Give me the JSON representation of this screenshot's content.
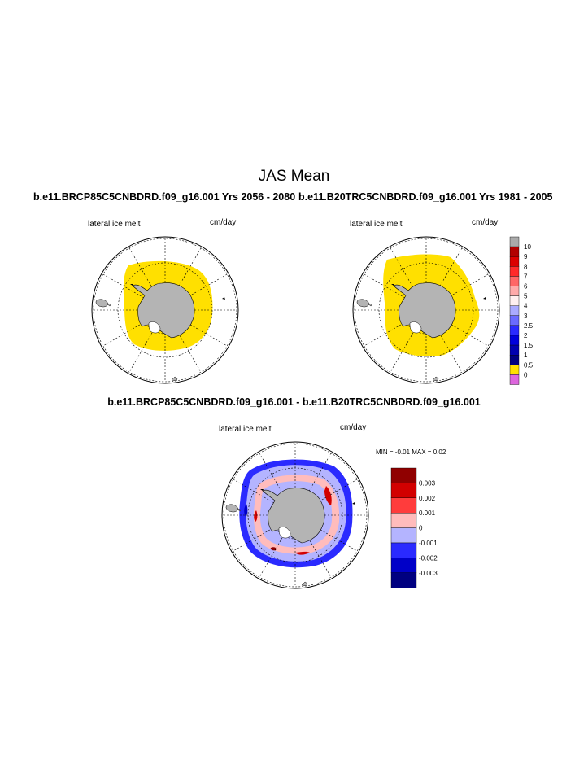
{
  "figure": {
    "title": "JAS Mean",
    "left_run_title": "b.e11.BRCP85C5CNBDRD.f09_g16.001  Yrs 2056 - 2080",
    "right_run_title": "b.e11.B20TRC5CNBDRD.f09_g16.001  Yrs 1981 - 2005",
    "diff_title": "b.e11.BRCP85C5CNBDRD.f09_g16.001 - b.e11.B20TRC5CNBDRD.f09_g16.001"
  },
  "panels": {
    "left": {
      "variable": "lateral ice melt",
      "units": "cm/day"
    },
    "right": {
      "variable": "lateral ice melt",
      "units": "cm/day"
    },
    "diff": {
      "variable": "lateral ice melt",
      "units": "cm/day",
      "min_max": "MIN =  -0.01 MAX =   0.02"
    }
  },
  "colorbars": {
    "absolute": {
      "labels": [
        "10",
        "9",
        "8",
        "7",
        "6",
        "5",
        "4",
        "3",
        "2.5",
        "2",
        "1.5",
        "1",
        "0.5",
        "0"
      ],
      "colors": [
        "#aaaaaa",
        "#b20000",
        "#dc0000",
        "#ff2a2a",
        "#ff6666",
        "#ffaaaa",
        "#fff0f0",
        "#aaaaff",
        "#6a6aff",
        "#2a2aff",
        "#0000dc",
        "#0000b0",
        "#000080",
        "#ffe000",
        "#dd66dd"
      ]
    },
    "difference": {
      "labels": [
        "0.003",
        "0.002",
        "0.001",
        "0",
        "-0.001",
        "-0.002",
        "-0.003"
      ],
      "colors": [
        "#900000",
        "#d20000",
        "#ff3c3c",
        "#ffbcbc",
        "#b4b4ff",
        "#2a2aff",
        "#0000c8",
        "#000080"
      ]
    }
  },
  "map_colors": {
    "land": "#b4b4b4",
    "ice_melt": "#ffe000",
    "diff_base": "#b4b4ff",
    "diff_pos": "#ffbcbc",
    "diff_neg": "#2a2aff",
    "diff_strong_pos": "#d20000"
  }
}
